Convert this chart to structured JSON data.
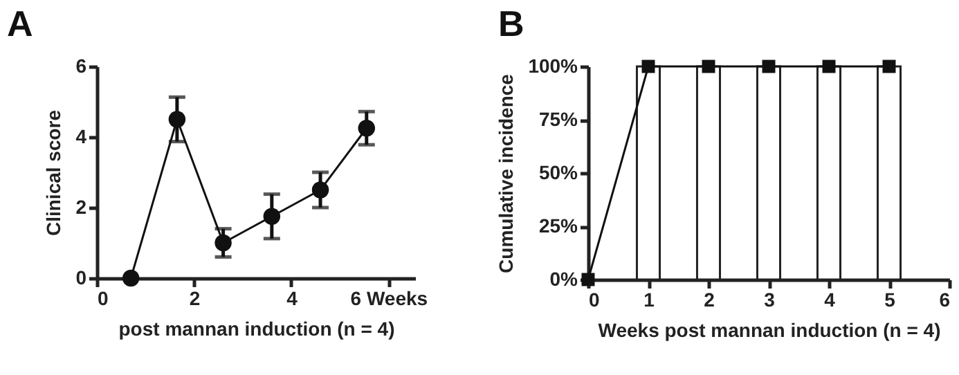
{
  "chart_data": [
    {
      "type": "line",
      "title": "A",
      "xlabel": "post mannan induction (n = 4)",
      "ylabel": "Clinical score",
      "xlim": [
        0,
        6.55
      ],
      "xticks": [
        0,
        2,
        4,
        {
          "value": 6,
          "label": "6 Weeks"
        }
      ],
      "ylim": [
        0,
        6
      ],
      "yticks": [
        0,
        2,
        4,
        6
      ],
      "grid": false,
      "marker": "circle",
      "line_style": "solid",
      "series": [
        {
          "color": "#111111",
          "x": [
            0.7,
            1.65,
            2.6,
            3.6,
            4.6,
            5.55
          ],
          "values": [
            0,
            4.5,
            1,
            1.75,
            2.5,
            4.25
          ],
          "errors": [
            null,
            0.63,
            0.4,
            0.63,
            0.5,
            0.47
          ]
        }
      ]
    },
    {
      "type": "line",
      "title": "B",
      "xlabel": "Weeks post mannan induction (n = 4)",
      "ylabel": "Cumulative incidence",
      "xlim": [
        0,
        6
      ],
      "xticks": [
        0,
        1,
        2,
        3,
        4,
        5,
        6
      ],
      "ylim": [
        0,
        100
      ],
      "yticks": [
        {
          "value": 0,
          "label": "0%"
        },
        {
          "value": 25,
          "label": "25%"
        },
        {
          "value": 50,
          "label": "50%"
        },
        {
          "value": 75,
          "label": "75%"
        },
        {
          "value": 100,
          "label": "100%"
        }
      ],
      "grid": false,
      "marker": "square",
      "line_style": "solid",
      "series": [
        {
          "type": "bar",
          "color": "#ffffff",
          "x": [
            1,
            2,
            3,
            4,
            5
          ],
          "values": [
            100,
            100,
            100,
            100,
            100
          ]
        },
        {
          "type": "line",
          "color": "#111111",
          "x": [
            0,
            1,
            2,
            3,
            4,
            5
          ],
          "values": [
            0,
            100,
            100,
            100,
            100,
            100
          ]
        }
      ]
    }
  ]
}
